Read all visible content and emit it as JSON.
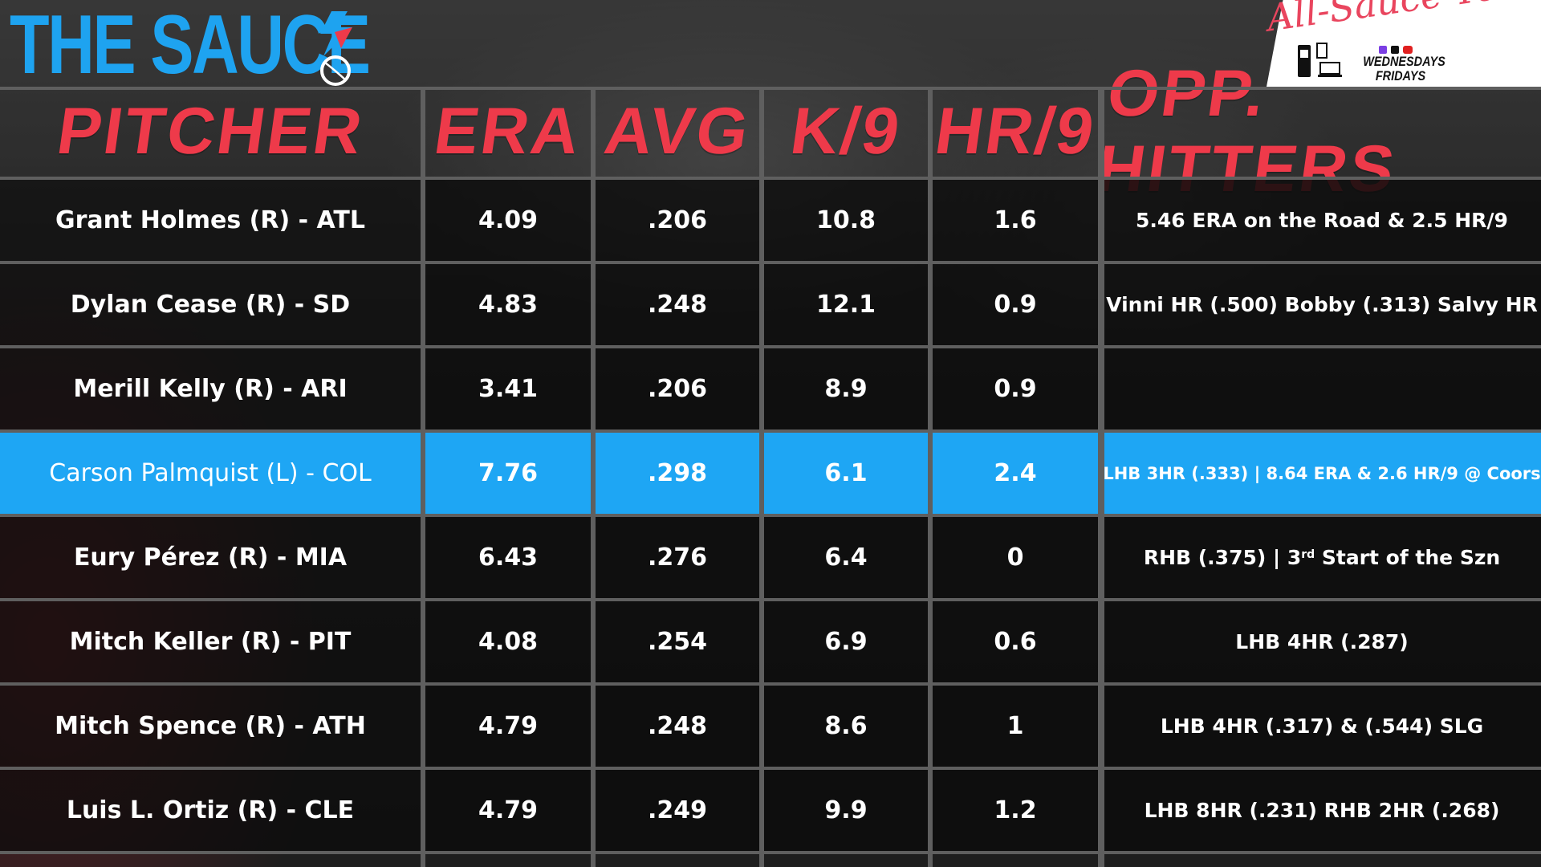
{
  "brand": {
    "logo_text": "THE SAUCE",
    "accent_color": "#1ea3f0",
    "header_color": "#ee3a4a",
    "highlight_color": "#1ea6f4"
  },
  "badge": {
    "script_text": "All-Sauce Team",
    "days_line1": "WEDNESDAYS",
    "days_line2": "FRIDAYS"
  },
  "table": {
    "headers": [
      "PITCHER",
      "ERA",
      "AVG",
      "K/9",
      "HR/9",
      "OPP. HITTERS"
    ],
    "highlight_row": 3,
    "rows": [
      {
        "pitcher": "Grant Holmes (R) - ATL",
        "era": "4.09",
        "avg": ".206",
        "k9": "10.8",
        "hr9": "1.6",
        "opp": "5.46 ERA on the Road & 2.5 HR/9"
      },
      {
        "pitcher": "Dylan Cease (R) - SD",
        "era": "4.83",
        "avg": ".248",
        "k9": "12.1",
        "hr9": "0.9",
        "opp": "Vinni HR (.500) Bobby (.313) Salvy HR"
      },
      {
        "pitcher": "Merill Kelly (R) - ARI",
        "era": "3.41",
        "avg": ".206",
        "k9": "8.9",
        "hr9": "0.9",
        "opp": ""
      },
      {
        "pitcher": "Carson Palmquist (L) - COL",
        "era": "7.76",
        "avg": ".298",
        "k9": "6.1",
        "hr9": "2.4",
        "opp": "LHB 3HR (.333) | 8.64 ERA & 2.6 HR/9 @ Coors"
      },
      {
        "pitcher": "Eury Pérez (R) - MIA",
        "era": "6.43",
        "avg": ".276",
        "k9": "6.4",
        "hr9": "0",
        "opp_pre": "RHB (.375) | 3",
        "opp_sup": "rd",
        "opp_post": " Start of the Szn"
      },
      {
        "pitcher": "Mitch Keller (R) - PIT",
        "era": "4.08",
        "avg": ".254",
        "k9": "6.9",
        "hr9": "0.6",
        "opp": "LHB 4HR (.287)"
      },
      {
        "pitcher": "Mitch Spence (R) - ATH",
        "era": "4.79",
        "avg": ".248",
        "k9": "8.6",
        "hr9": "1",
        "opp": "LHB 4HR (.317) & (.544) SLG"
      },
      {
        "pitcher": "Luis L. Ortiz (R) - CLE",
        "era": "4.79",
        "avg": ".249",
        "k9": "9.9",
        "hr9": "1.2",
        "opp": "LHB 8HR (.231) RHB 2HR (.268)"
      }
    ]
  }
}
